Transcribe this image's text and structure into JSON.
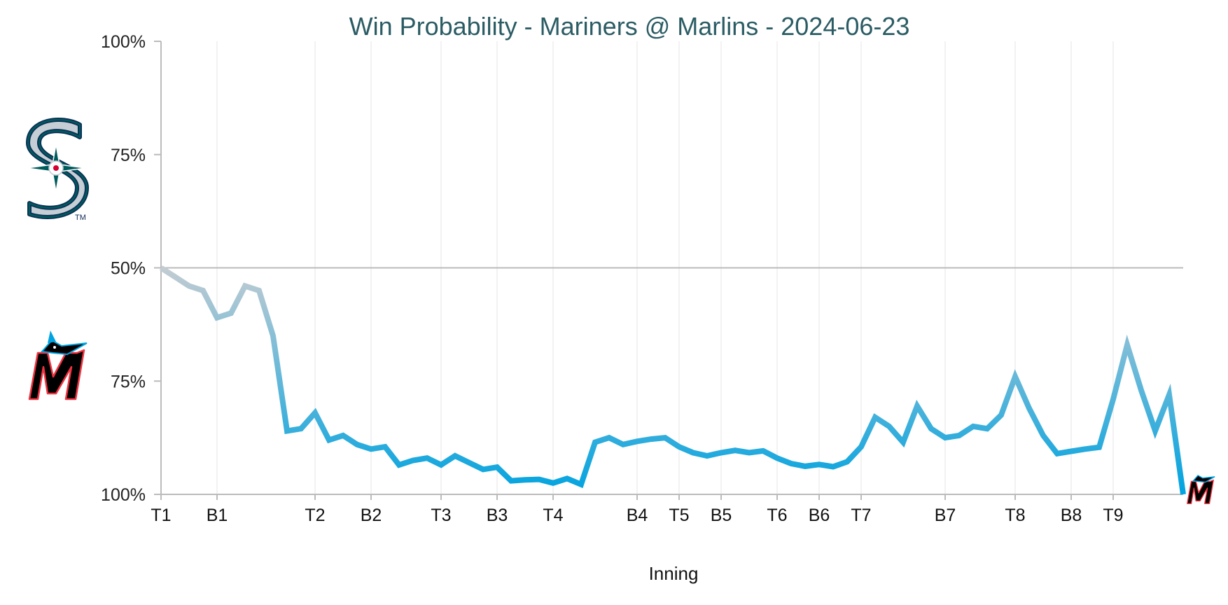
{
  "chart_data": {
    "type": "line",
    "title": "Win Probability - Mariners @ Marlins - 2024-06-23",
    "xlabel": "Inning",
    "ylabel": "",
    "y_tick_labels": [
      "100%",
      "75%",
      "50%",
      "75%",
      "100%"
    ],
    "x_tick_labels": [
      "T1",
      "B1",
      "T2",
      "B2",
      "T3",
      "B3",
      "T4",
      "B4",
      "T5",
      "B5",
      "T6",
      "B6",
      "T7",
      "B7",
      "T8",
      "B8",
      "T9"
    ],
    "x_tick_positions": [
      0,
      4,
      11,
      15,
      20,
      24,
      28,
      34,
      37,
      40,
      44,
      47,
      50,
      56,
      61,
      65,
      68
    ],
    "x_range": [
      0,
      73
    ],
    "ylim": [
      0,
      100
    ],
    "y_meaning": "Marlins win probability (%); values below 50% favor Mariners, above favor Marlins",
    "teams": {
      "top": "Mariners",
      "bottom": "Marlins"
    },
    "reference_line": 50,
    "colors": {
      "start": "#c4ccd2",
      "end": "#00a3e0",
      "title": "#2b5c64",
      "axis": "#bbbbbb"
    },
    "values": [
      50,
      52,
      54,
      55,
      61,
      60,
      54,
      55,
      65,
      86,
      85.5,
      82,
      88,
      87,
      89,
      90,
      89.5,
      93.5,
      92.5,
      92,
      93.5,
      91.5,
      93,
      94.5,
      94,
      97,
      96.8,
      96.7,
      97.5,
      96.5,
      97.8,
      88.5,
      87.5,
      89,
      88.3,
      87.8,
      87.5,
      89.5,
      90.8,
      91.5,
      90.8,
      90.3,
      90.8,
      90.4,
      92,
      93.2,
      93.8,
      93.4,
      93.9,
      92.8,
      89.5,
      83,
      85,
      88.5,
      80.5,
      85.5,
      87.5,
      87,
      85,
      85.5,
      82.5,
      74,
      81,
      87,
      91,
      90.5,
      90,
      89.6,
      79,
      67,
      77,
      86,
      78,
      100
    ]
  },
  "logos": {
    "top_icon": "mariners-logo-icon",
    "bottom_icon": "marlins-logo-icon",
    "end_icon": "marlins-end-logo-icon",
    "trademark": "TM"
  }
}
